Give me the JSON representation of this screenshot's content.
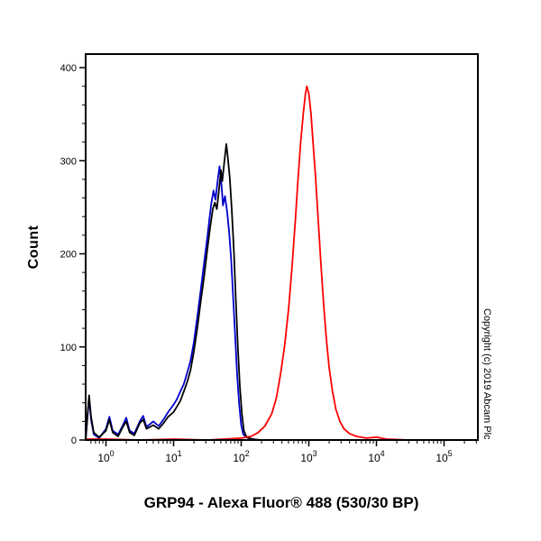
{
  "page": {
    "background": "#ffffff"
  },
  "chart_data": {
    "type": "line",
    "subtype": "flow-cytometry-histogram",
    "title": "GRP94 - Alexa Fluor® 488 (530/30 BP)",
    "ylabel": "Count",
    "copyright": "Copyright (c) 2019 Abcam Plc",
    "x_scale": "log10",
    "x_log_range": [
      -0.3,
      5.5
    ],
    "x_tick_exponents": [
      0,
      1,
      2,
      3,
      4,
      5
    ],
    "ylim": [
      0,
      400
    ],
    "y_ticks": [
      0,
      100,
      200,
      300,
      400
    ],
    "y_minor_step": 20,
    "grid": false,
    "legend": "none",
    "axis_color": "#000000",
    "series": [
      {
        "name": "blue-histogram",
        "color": "#0000cd",
        "points": [
          [
            -0.3,
            0
          ],
          [
            -0.27,
            28
          ],
          [
            -0.25,
            45
          ],
          [
            -0.22,
            22
          ],
          [
            -0.18,
            6
          ],
          [
            -0.1,
            2
          ],
          [
            0.0,
            12
          ],
          [
            0.05,
            25
          ],
          [
            0.1,
            10
          ],
          [
            0.18,
            6
          ],
          [
            0.25,
            16
          ],
          [
            0.3,
            24
          ],
          [
            0.35,
            10
          ],
          [
            0.42,
            7
          ],
          [
            0.5,
            20
          ],
          [
            0.55,
            26
          ],
          [
            0.6,
            14
          ],
          [
            0.7,
            20
          ],
          [
            0.78,
            15
          ],
          [
            0.85,
            22
          ],
          [
            0.92,
            30
          ],
          [
            1.0,
            38
          ],
          [
            1.05,
            44
          ],
          [
            1.1,
            52
          ],
          [
            1.15,
            60
          ],
          [
            1.2,
            72
          ],
          [
            1.25,
            85
          ],
          [
            1.3,
            105
          ],
          [
            1.35,
            132
          ],
          [
            1.4,
            160
          ],
          [
            1.45,
            190
          ],
          [
            1.5,
            218
          ],
          [
            1.53,
            238
          ],
          [
            1.56,
            255
          ],
          [
            1.59,
            268
          ],
          [
            1.62,
            258
          ],
          [
            1.65,
            278
          ],
          [
            1.68,
            294
          ],
          [
            1.71,
            272
          ],
          [
            1.73,
            252
          ],
          [
            1.76,
            262
          ],
          [
            1.79,
            246
          ],
          [
            1.82,
            225
          ],
          [
            1.85,
            195
          ],
          [
            1.88,
            155
          ],
          [
            1.91,
            112
          ],
          [
            1.94,
            70
          ],
          [
            1.97,
            38
          ],
          [
            2.0,
            16
          ],
          [
            2.03,
            6
          ],
          [
            2.1,
            2
          ],
          [
            2.25,
            0
          ],
          [
            3.0,
            0
          ],
          [
            4.0,
            0
          ],
          [
            5.5,
            0
          ]
        ]
      },
      {
        "name": "black-histogram",
        "color": "#000000",
        "points": [
          [
            -0.3,
            0
          ],
          [
            -0.27,
            30
          ],
          [
            -0.25,
            48
          ],
          [
            -0.22,
            25
          ],
          [
            -0.18,
            8
          ],
          [
            -0.1,
            3
          ],
          [
            0.0,
            10
          ],
          [
            0.05,
            22
          ],
          [
            0.1,
            8
          ],
          [
            0.18,
            4
          ],
          [
            0.25,
            14
          ],
          [
            0.3,
            20
          ],
          [
            0.35,
            8
          ],
          [
            0.42,
            5
          ],
          [
            0.5,
            18
          ],
          [
            0.55,
            22
          ],
          [
            0.6,
            12
          ],
          [
            0.7,
            16
          ],
          [
            0.78,
            12
          ],
          [
            0.85,
            18
          ],
          [
            0.92,
            25
          ],
          [
            1.0,
            30
          ],
          [
            1.05,
            36
          ],
          [
            1.1,
            42
          ],
          [
            1.15,
            52
          ],
          [
            1.2,
            62
          ],
          [
            1.25,
            75
          ],
          [
            1.3,
            95
          ],
          [
            1.35,
            120
          ],
          [
            1.4,
            148
          ],
          [
            1.45,
            175
          ],
          [
            1.5,
            205
          ],
          [
            1.54,
            228
          ],
          [
            1.58,
            248
          ],
          [
            1.61,
            255
          ],
          [
            1.64,
            248
          ],
          [
            1.67,
            268
          ],
          [
            1.7,
            290
          ],
          [
            1.72,
            278
          ],
          [
            1.75,
            298
          ],
          [
            1.78,
            318
          ],
          [
            1.8,
            305
          ],
          [
            1.83,
            282
          ],
          [
            1.86,
            248
          ],
          [
            1.89,
            205
          ],
          [
            1.92,
            152
          ],
          [
            1.95,
            100
          ],
          [
            1.98,
            58
          ],
          [
            2.01,
            28
          ],
          [
            2.04,
            10
          ],
          [
            2.08,
            3
          ],
          [
            2.15,
            1
          ],
          [
            2.3,
            0
          ],
          [
            3.0,
            0
          ],
          [
            4.0,
            0
          ],
          [
            5.5,
            0
          ]
        ]
      },
      {
        "name": "red-histogram",
        "color": "#fe0000",
        "points": [
          [
            -0.3,
            1
          ],
          [
            0.0,
            1
          ],
          [
            0.5,
            0
          ],
          [
            1.0,
            1
          ],
          [
            1.5,
            0
          ],
          [
            2.0,
            2
          ],
          [
            2.15,
            4
          ],
          [
            2.25,
            8
          ],
          [
            2.35,
            15
          ],
          [
            2.45,
            28
          ],
          [
            2.52,
            45
          ],
          [
            2.58,
            70
          ],
          [
            2.64,
            100
          ],
          [
            2.7,
            140
          ],
          [
            2.75,
            185
          ],
          [
            2.8,
            235
          ],
          [
            2.84,
            280
          ],
          [
            2.88,
            320
          ],
          [
            2.92,
            352
          ],
          [
            2.95,
            372
          ],
          [
            2.97,
            380
          ],
          [
            3.0,
            372
          ],
          [
            3.03,
            352
          ],
          [
            3.06,
            322
          ],
          [
            3.1,
            282
          ],
          [
            3.14,
            235
          ],
          [
            3.18,
            188
          ],
          [
            3.22,
            145
          ],
          [
            3.26,
            108
          ],
          [
            3.3,
            78
          ],
          [
            3.35,
            52
          ],
          [
            3.4,
            33
          ],
          [
            3.46,
            20
          ],
          [
            3.52,
            12
          ],
          [
            3.6,
            7
          ],
          [
            3.7,
            4
          ],
          [
            3.85,
            2
          ],
          [
            4.0,
            3
          ],
          [
            4.15,
            1
          ],
          [
            4.5,
            0
          ],
          [
            5.5,
            0
          ]
        ]
      }
    ]
  }
}
